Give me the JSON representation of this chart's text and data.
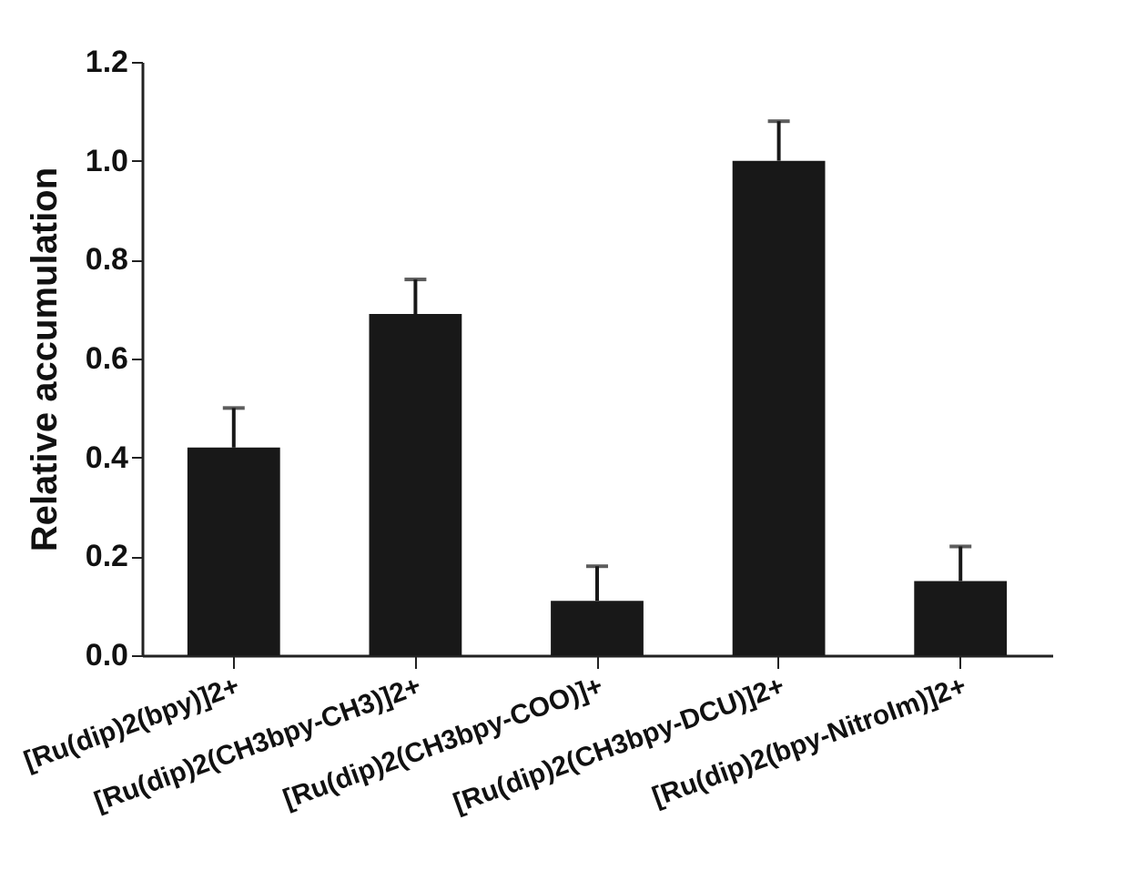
{
  "chart_data": {
    "type": "bar",
    "ylabel": "Relative accumulation",
    "categories": [
      "[Ru(dip)2(bpy)]2+",
      "[Ru(dip)2(CH3bpy-CH3)]2+",
      "[Ru(dip)2(CH3bpy-COO)]+",
      "[Ru(dip)2(CH3bpy-DCU)]2+",
      "[Ru(dip)2(bpy-NitroIm)]2+"
    ],
    "values": [
      0.42,
      0.69,
      0.11,
      1.0,
      0.15
    ],
    "errors": [
      [
        0.42,
        0.5
      ],
      [
        0.69,
        0.76
      ],
      [
        0.11,
        0.18
      ],
      [
        1.0,
        1.08
      ],
      [
        0.15,
        0.22
      ]
    ],
    "color": "#181818",
    "ylim": [
      0,
      1.2
    ],
    "yticks": [
      "0.0",
      0.2,
      0.4,
      0.6,
      0.8,
      "1.0",
      1.2
    ],
    "grid": false
  }
}
